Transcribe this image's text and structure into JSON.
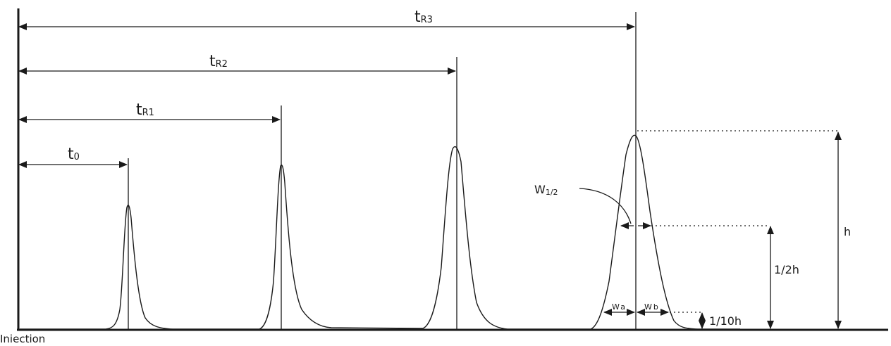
{
  "retention_labels": {
    "t0": {
      "main": "t",
      "sub": "0"
    },
    "tR1": {
      "main": "t",
      "sub": "R1"
    },
    "tR2": {
      "main": "t",
      "sub": "R2"
    },
    "tR3": {
      "main": "t",
      "sub": "R3"
    }
  },
  "width_labels": {
    "w_half": {
      "main": "W",
      "sub": "1/2"
    },
    "w_a": {
      "main": "W",
      "sub": "a"
    },
    "w_b": {
      "main": "W",
      "sub": "b"
    }
  },
  "height_labels": {
    "h": "h",
    "half_h": "1/2h",
    "tenth_h": "1/10h"
  },
  "injection_label": "Iniection"
}
